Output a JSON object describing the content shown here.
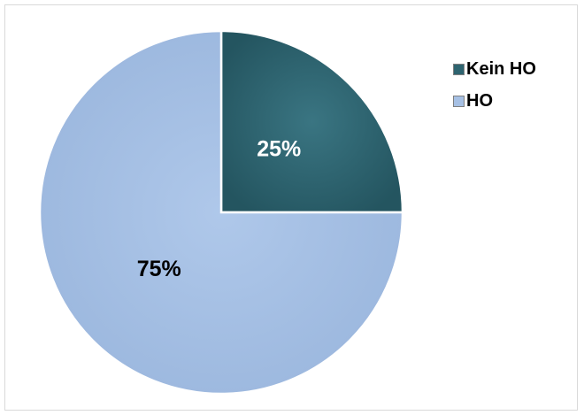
{
  "chart_data": {
    "type": "pie",
    "title": "",
    "categories": [
      "Kein HO",
      "HO"
    ],
    "values": [
      25,
      75
    ],
    "data_labels": [
      "25%",
      "75%"
    ],
    "colors": [
      "#2e6470",
      "#a6c0e4"
    ],
    "legend_position": "right",
    "start_angle": "12 o'clock, clockwise"
  },
  "legend": {
    "items": [
      {
        "label": "Kein HO",
        "color": "#2e6470"
      },
      {
        "label": "HO",
        "color": "#a6c0e4"
      }
    ]
  }
}
